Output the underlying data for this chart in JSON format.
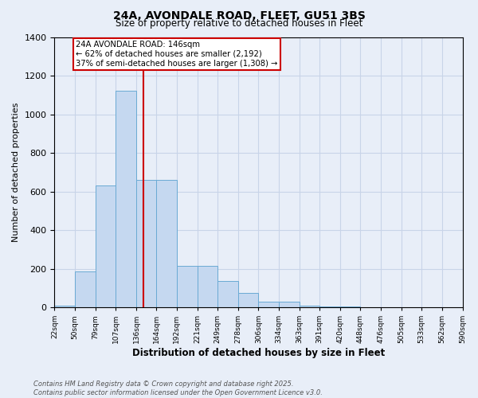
{
  "title_line1": "24A, AVONDALE ROAD, FLEET, GU51 3BS",
  "title_line2": "Size of property relative to detached houses in Fleet",
  "xlabel": "Distribution of detached houses by size in Fleet",
  "ylabel": "Number of detached properties",
  "bin_edges": [
    22,
    50,
    79,
    107,
    136,
    164,
    192,
    221,
    249,
    278,
    306,
    334,
    363,
    391,
    420,
    448,
    476,
    505,
    533,
    562,
    590
  ],
  "bar_heights": [
    10,
    185,
    630,
    1120,
    660,
    660,
    215,
    215,
    135,
    75,
    30,
    30,
    10,
    5,
    3,
    1,
    1,
    0,
    0,
    0
  ],
  "bar_color": "#c5d8f0",
  "bar_edge_color": "#6aaad4",
  "vline_x": 146,
  "vline_color": "#cc0000",
  "annotation_text": "24A AVONDALE ROAD: 146sqm\n← 62% of detached houses are smaller (2,192)\n37% of semi-detached houses are larger (1,308) →",
  "annotation_box_color": "#ffffff",
  "annotation_box_edge": "#cc0000",
  "ylim": [
    0,
    1400
  ],
  "yticks": [
    0,
    200,
    400,
    600,
    800,
    1000,
    1200,
    1400
  ],
  "grid_color": "#c8d4e8",
  "background_color": "#e8eef8",
  "footnote": "Contains HM Land Registry data © Crown copyright and database right 2025.\nContains public sector information licensed under the Open Government Licence v3.0.",
  "tick_labels": [
    "22sqm",
    "50sqm",
    "79sqm",
    "107sqm",
    "136sqm",
    "164sqm",
    "192sqm",
    "221sqm",
    "249sqm",
    "278sqm",
    "306sqm",
    "334sqm",
    "363sqm",
    "391sqm",
    "420sqm",
    "448sqm",
    "476sqm",
    "505sqm",
    "533sqm",
    "562sqm",
    "590sqm"
  ]
}
